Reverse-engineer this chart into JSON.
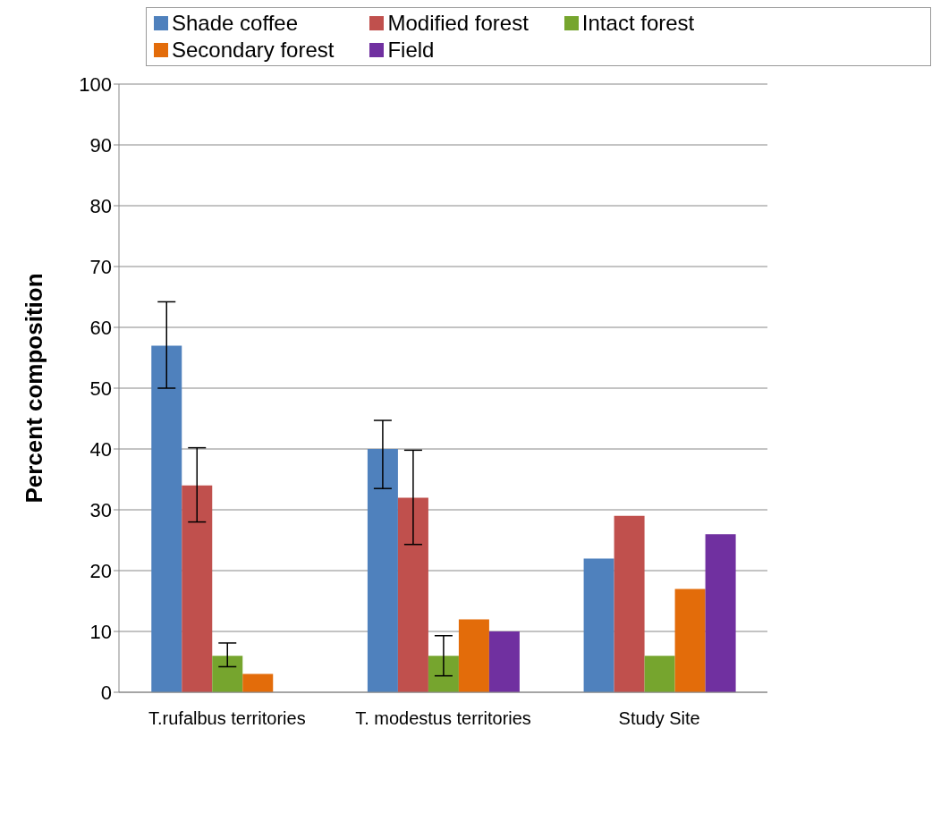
{
  "chart_data": {
    "type": "bar",
    "ylabel": "Percent composition",
    "categories": [
      "T.rufalbus territories",
      "T. modestus territories",
      "Study Site"
    ],
    "series": [
      {
        "name": "Shade coffee",
        "color": "#4f81bd",
        "values": [
          57,
          40,
          22
        ],
        "errors": [
          [
            50,
            64.2
          ],
          [
            33.5,
            44.7
          ],
          null
        ]
      },
      {
        "name": "Modified forest",
        "color": "#c0504d",
        "values": [
          34,
          32,
          29
        ],
        "errors": [
          [
            28,
            40.2
          ],
          [
            24.3,
            39.8
          ],
          null
        ]
      },
      {
        "name": "Intact forest",
        "color": "#76a52e",
        "values": [
          6,
          6,
          6
        ],
        "errors": [
          [
            4.2,
            8.1
          ],
          [
            2.7,
            9.3
          ],
          null
        ]
      },
      {
        "name": "Secondary forest",
        "color": "#e36c0a",
        "values": [
          3,
          12,
          17
        ]
      },
      {
        "name": "Field",
        "color": "#7030a0",
        "values": [
          0,
          10,
          26
        ]
      }
    ],
    "ylim": [
      0,
      100
    ],
    "yticks": [
      0,
      10,
      20,
      30,
      40,
      50,
      60,
      70,
      80,
      90,
      100
    ],
    "grid": "y",
    "legend": "top"
  }
}
